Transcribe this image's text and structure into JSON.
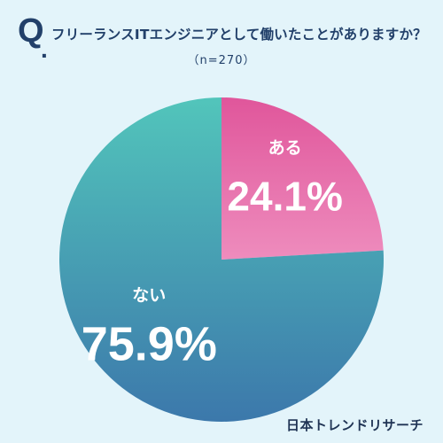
{
  "header": {
    "q_letter": "Q",
    "q_dot": ".",
    "question": "フリーランスITエンジニアとして働いたことがありますか？",
    "sample": "（n=270）"
  },
  "chart_data": {
    "type": "pie",
    "title": "フリーランスITエンジニアとして働いたことがありますか？",
    "subtitle": "（n=270）",
    "slices": [
      {
        "label": "ある",
        "value": 24.1,
        "value_text": "24.1%",
        "color_top": "#e0569b",
        "color_bottom": "#ee8cbd"
      },
      {
        "label": "ない",
        "value": 75.9,
        "value_text": "75.9%",
        "color_top": "#52c5bb",
        "color_bottom": "#3c78ab"
      }
    ],
    "start": "12 o'clock",
    "direction": "clockwise",
    "legend": "none"
  },
  "footer": {
    "brand": "日本トレンドリサーチ"
  }
}
